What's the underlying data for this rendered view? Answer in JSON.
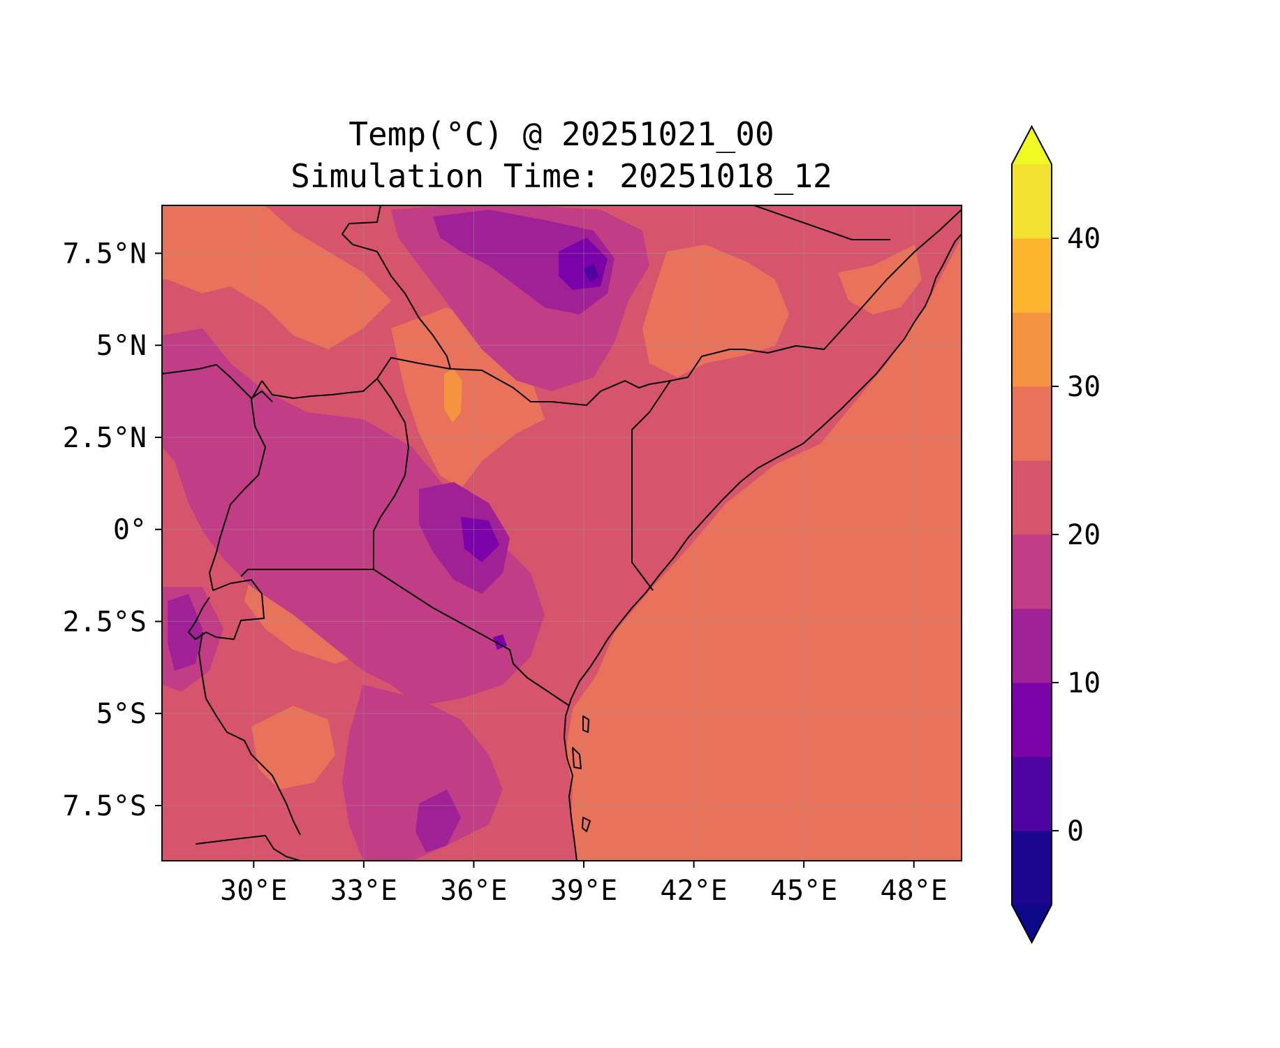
{
  "title": {
    "line1": "Temp(°C) @ 20251021_00",
    "line2": "Simulation Time: 20251018_12"
  },
  "map": {
    "lon_range": [
      27.5,
      49.3
    ],
    "lat_range": [
      -9.0,
      8.8
    ],
    "x_ticks": [
      {
        "value": 30,
        "label": "30°E"
      },
      {
        "value": 33,
        "label": "33°E"
      },
      {
        "value": 36,
        "label": "36°E"
      },
      {
        "value": 39,
        "label": "39°E"
      },
      {
        "value": 42,
        "label": "42°E"
      },
      {
        "value": 45,
        "label": "45°E"
      },
      {
        "value": 48,
        "label": "48°E"
      }
    ],
    "y_ticks": [
      {
        "value": 7.5,
        "label": "7.5°N"
      },
      {
        "value": 5,
        "label": "5°N"
      },
      {
        "value": 2.5,
        "label": "2.5°N"
      },
      {
        "value": 0,
        "label": "0°"
      },
      {
        "value": -2.5,
        "label": "2.5°S"
      },
      {
        "value": -5,
        "label": "5°S"
      },
      {
        "value": -7.5,
        "label": "7.5°S"
      }
    ],
    "gridlines": true,
    "fill_value_ocean": 27.5
  },
  "colorbar": {
    "levels": [
      -5,
      0,
      5,
      10,
      15,
      20,
      25,
      30,
      35,
      40,
      45
    ],
    "colors": [
      "#1c068f",
      "#4f03a0",
      "#7b02a8",
      "#a02196",
      "#c13d86",
      "#d6556d",
      "#e8725a",
      "#f59342",
      "#fdb42f",
      "#f3e131"
    ],
    "under_color": "#0d0887",
    "over_color": "#f0f921",
    "extend": "both",
    "ticks": [
      {
        "value": 0,
        "label": "0"
      },
      {
        "value": 10,
        "label": "10"
      },
      {
        "value": 20,
        "label": "20"
      },
      {
        "value": 30,
        "label": "30"
      },
      {
        "value": 40,
        "label": "40"
      }
    ]
  },
  "chart_data": {
    "type": "heatmap",
    "title": "Temp(°C) @ 20251021_00",
    "subtitle": "Simulation Time: 20251018_12",
    "x_range": [
      27.5,
      49.3
    ],
    "y_range": [
      -9.0,
      8.8
    ],
    "colorbar_range": [
      -5,
      45
    ],
    "grid": true
  }
}
